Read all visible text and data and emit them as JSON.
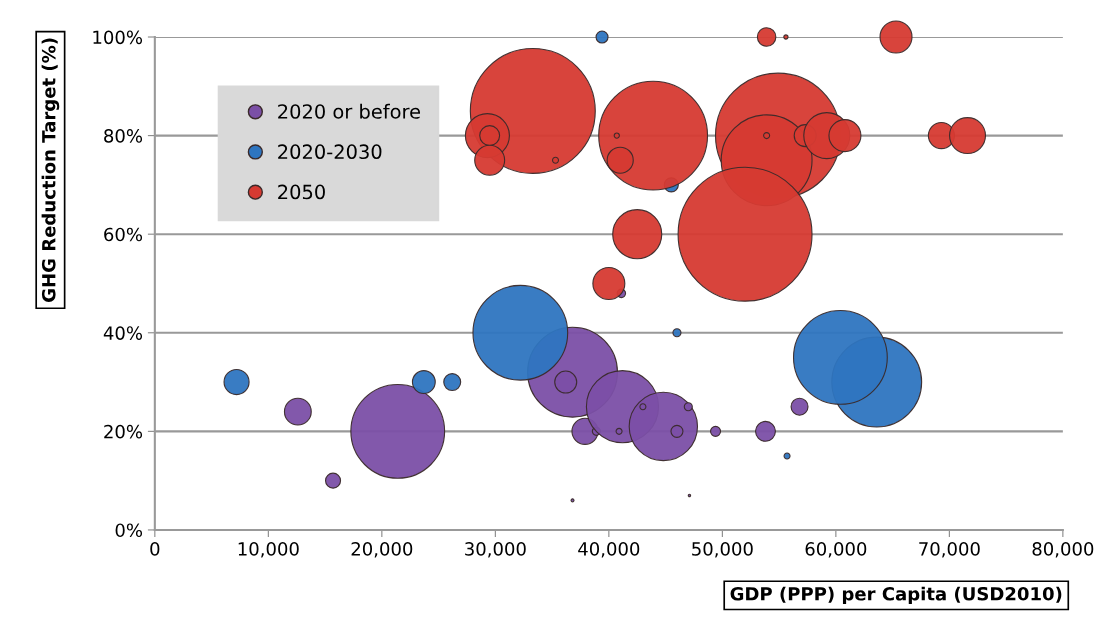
{
  "chart_data": {
    "type": "bubble",
    "xlabel": "GDP (PPP) per Capita (USD2010)",
    "ylabel": "GHG Reduction Target (%)",
    "xlim": [
      0,
      80000
    ],
    "xticks": [
      {
        "value": 0,
        "label": "0"
      },
      {
        "value": 10000,
        "label": "10,000"
      },
      {
        "value": 20000,
        "label": "20,000"
      },
      {
        "value": 30000,
        "label": "30,000"
      },
      {
        "value": 40000,
        "label": "40,000"
      },
      {
        "value": 50000,
        "label": "50,000"
      },
      {
        "value": 60000,
        "label": "60,000"
      },
      {
        "value": 70000,
        "label": "70,000"
      },
      {
        "value": 80000,
        "label": "80,000"
      }
    ],
    "ylim": [
      0,
      100
    ],
    "yticks": [
      {
        "value": 0,
        "label": "0%"
      },
      {
        "value": 20,
        "label": "20%"
      },
      {
        "value": 40,
        "label": "40%"
      },
      {
        "value": 60,
        "label": "60%"
      },
      {
        "value": 80,
        "label": "80%"
      },
      {
        "value": 100,
        "label": "100%"
      }
    ],
    "grid": "y",
    "legend": "top left",
    "series": [
      {
        "name": "2020 or before",
        "color": "#7b4fa6",
        "x": [
          21400,
          12600,
          15700,
          36800,
          36200,
          37900,
          38900,
          41200,
          44800,
          40900,
          43000,
          47000,
          46000,
          49400,
          53800,
          56800,
          36800,
          47100,
          41100
        ],
        "values": [
          20,
          24,
          10,
          32,
          30,
          20,
          20,
          25,
          21,
          20,
          25,
          25,
          20,
          20,
          20,
          25,
          6,
          7,
          48
        ],
        "sizes": [
          0.49,
          0.04,
          0.0125,
          0.45,
          0.027,
          0.038,
          0.0036,
          0.29,
          0.26,
          0.002,
          0.002,
          0.0036,
          0.008,
          0.0056,
          0.022,
          0.016,
          0.0005,
          0.0003,
          0.004
        ]
      },
      {
        "name": "2020-2030",
        "color": "#2e75c0",
        "x": [
          39400,
          45500,
          32200,
          7200,
          23700,
          26200,
          46000,
          63600,
          60400,
          55700
        ],
        "values": [
          100,
          70,
          40,
          30,
          30,
          30,
          40,
          30,
          35,
          15
        ],
        "sizes": [
          0.008,
          0.011,
          0.5,
          0.035,
          0.029,
          0.016,
          0.0036,
          0.45,
          0.49,
          0.002
        ]
      },
      {
        "name": "2050",
        "color": "#d63a32",
        "x": [
          33300,
          29300,
          29500,
          29500,
          35300,
          53900,
          55600,
          65300,
          43900,
          40700,
          41000,
          54900,
          53900,
          53900,
          57300,
          59200,
          60800,
          69300,
          71600,
          42500,
          52000,
          40000
        ],
        "values": [
          85,
          80,
          80,
          75,
          75,
          100,
          100,
          100,
          80,
          80,
          75,
          80,
          75,
          80,
          80,
          80,
          80,
          80,
          80,
          60,
          60,
          50
        ],
        "sizes": [
          0.87,
          0.108,
          0.022,
          0.05,
          0.002,
          0.019,
          0.001,
          0.057,
          0.66,
          0.0015,
          0.038,
          0.87,
          0.46,
          0.002,
          0.027,
          0.118,
          0.057,
          0.038,
          0.072,
          0.134,
          1,
          0.057
        ]
      }
    ]
  }
}
